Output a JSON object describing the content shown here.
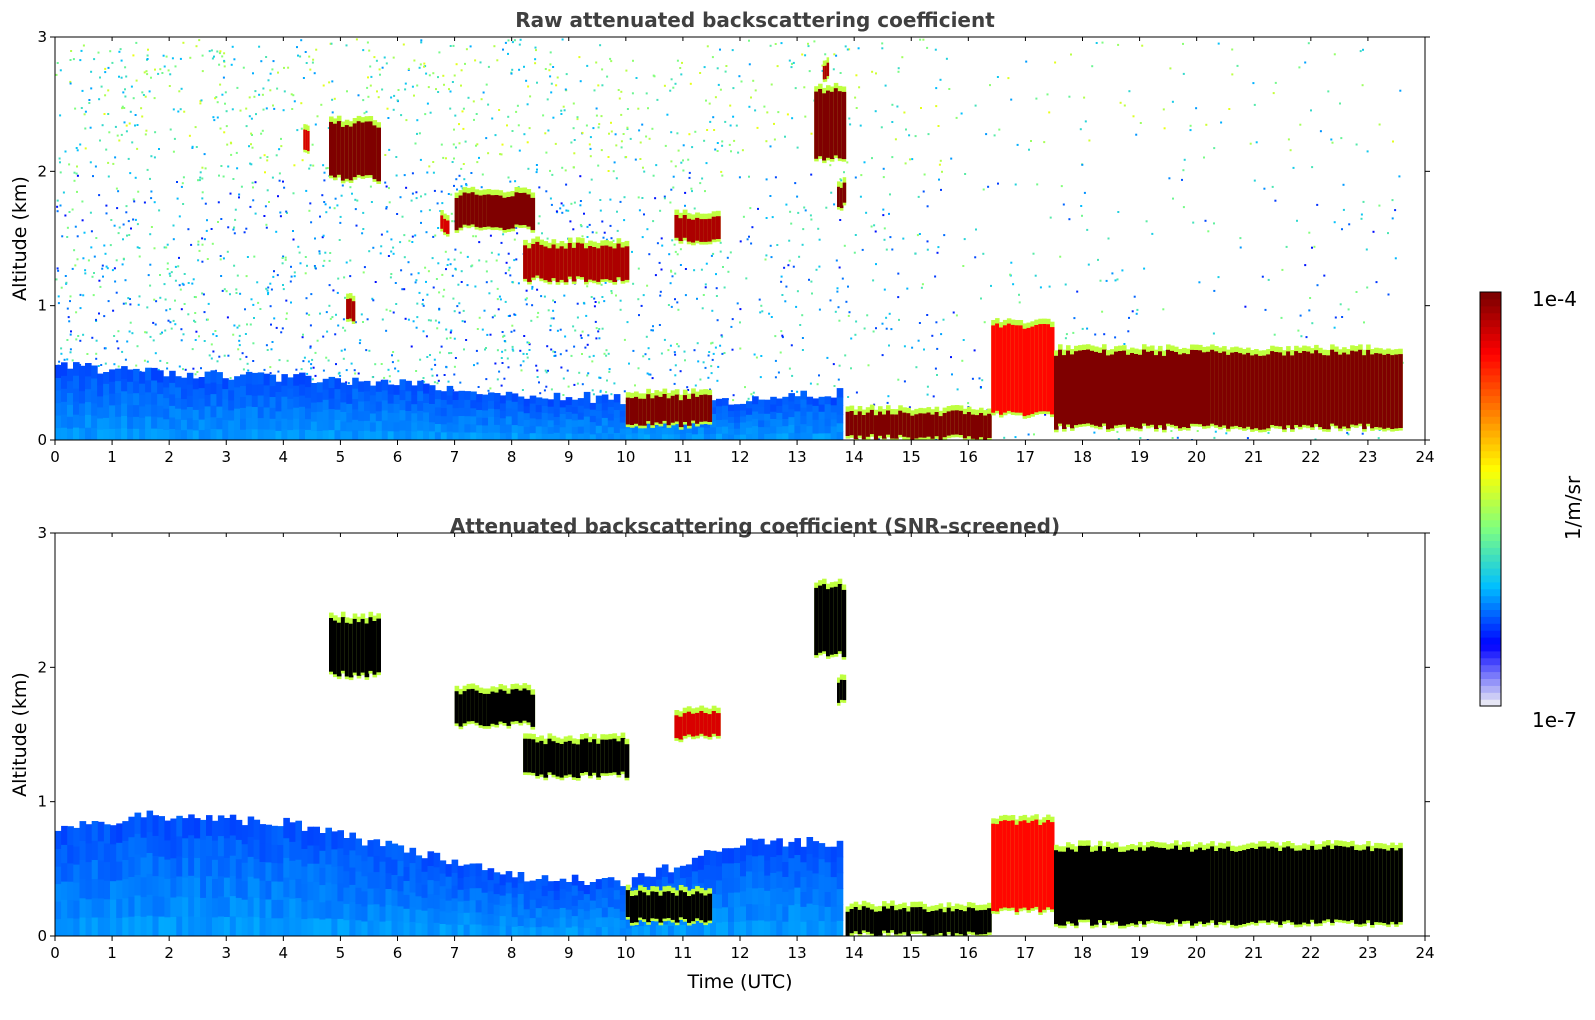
{
  "chart_data": [
    {
      "type": "heatmap",
      "title": "Raw attenuated backscattering coefficient",
      "xlabel": "",
      "ylabel": "Altitude (km)",
      "xlim": [
        0,
        24
      ],
      "ylim": [
        0,
        3
      ],
      "xticks": [
        "0",
        "1",
        "2",
        "3",
        "4",
        "5",
        "6",
        "7",
        "8",
        "9",
        "10",
        "11",
        "12",
        "13",
        "14",
        "15",
        "16",
        "17",
        "18",
        "19",
        "20",
        "21",
        "22",
        "23",
        "24"
      ],
      "yticks": [
        "0",
        "1",
        "2",
        "3"
      ],
      "noise": [
        {
          "t0": 0,
          "t1": 10.0,
          "top": 3.0,
          "density": 0.55
        },
        {
          "t0": 10.0,
          "t1": 13.8,
          "top": 3.0,
          "density": 0.35
        },
        {
          "t0": 13.8,
          "t1": 15.3,
          "top": 3.0,
          "density": 0.25
        },
        {
          "t0": 15.3,
          "t1": 23.6,
          "top": 3.0,
          "density": 0.12
        }
      ],
      "boundary_layer": [
        {
          "t": 0,
          "h": 0.55
        },
        {
          "t": 2,
          "h": 0.5
        },
        {
          "t": 5,
          "h": 0.45
        },
        {
          "t": 8,
          "h": 0.35
        },
        {
          "t": 10,
          "h": 0.3
        },
        {
          "t": 12,
          "h": 0.3
        },
        {
          "t": 13.8,
          "h": 0.35
        }
      ],
      "features": [
        {
          "t0": 4.8,
          "t1": 5.7,
          "b0": 1.95,
          "b1": 2.35,
          "level": 1.0
        },
        {
          "t0": 4.35,
          "t1": 4.45,
          "b0": 2.15,
          "b1": 2.3,
          "level": 0.9
        },
        {
          "t0": 7.0,
          "t1": 8.4,
          "b0": 1.58,
          "b1": 1.82,
          "level": 1.0
        },
        {
          "t0": 8.2,
          "t1": 10.05,
          "b0": 1.2,
          "b1": 1.45,
          "level": 0.95
        },
        {
          "t0": 6.75,
          "t1": 6.9,
          "b0": 1.55,
          "b1": 1.65,
          "level": 0.9
        },
        {
          "t0": 10.85,
          "t1": 11.65,
          "b0": 1.48,
          "b1": 1.65,
          "level": 0.95
        },
        {
          "t0": 13.3,
          "t1": 13.85,
          "b0": 2.1,
          "b1": 2.6,
          "level": 1.0
        },
        {
          "t0": 13.7,
          "t1": 13.85,
          "b0": 1.75,
          "b1": 1.9,
          "level": 1.0
        },
        {
          "t0": 13.45,
          "t1": 13.55,
          "b0": 2.7,
          "b1": 2.8,
          "level": 0.95
        },
        {
          "t0": 5.1,
          "t1": 5.25,
          "b0": 0.9,
          "b1": 1.05,
          "level": 0.95
        },
        {
          "t0": 10.0,
          "t1": 11.5,
          "b0": 0.12,
          "b1": 0.32,
          "level": 1.0
        },
        {
          "t0": 13.85,
          "t1": 16.4,
          "b0": 0.02,
          "b1": 0.2,
          "level": 1.0
        },
        {
          "t0": 16.4,
          "t1": 17.5,
          "b0": 0.2,
          "b1": 0.85,
          "level": 0.85
        },
        {
          "t0": 17.5,
          "t1": 23.6,
          "b0": 0.1,
          "b1": 0.65,
          "level": 1.0
        }
      ]
    },
    {
      "type": "heatmap",
      "title": "Attenuated backscattering coefficient (SNR-screened)",
      "xlabel": "Time (UTC)",
      "ylabel": "Altitude (km)",
      "xlim": [
        0,
        24
      ],
      "ylim": [
        0,
        3
      ],
      "xticks": [
        "0",
        "1",
        "2",
        "3",
        "4",
        "5",
        "6",
        "7",
        "8",
        "9",
        "10",
        "11",
        "12",
        "13",
        "14",
        "15",
        "16",
        "17",
        "18",
        "19",
        "20",
        "21",
        "22",
        "23",
        "24"
      ],
      "yticks": [
        "0",
        "1",
        "2",
        "3"
      ],
      "boundary_layer": [
        {
          "t": 0,
          "h": 0.8
        },
        {
          "t": 1.5,
          "h": 0.9
        },
        {
          "t": 4,
          "h": 0.85
        },
        {
          "t": 6,
          "h": 0.65
        },
        {
          "t": 8,
          "h": 0.45
        },
        {
          "t": 10,
          "h": 0.4
        },
        {
          "t": 12,
          "h": 0.7
        },
        {
          "t": 13.8,
          "h": 0.7
        }
      ],
      "features": [
        {
          "t0": 4.8,
          "t1": 5.7,
          "b0": 1.95,
          "b1": 2.35,
          "level": 1.1
        },
        {
          "t0": 7.0,
          "t1": 8.4,
          "b0": 1.58,
          "b1": 1.82,
          "level": 1.1
        },
        {
          "t0": 8.2,
          "t1": 10.05,
          "b0": 1.2,
          "b1": 1.45,
          "level": 1.1
        },
        {
          "t0": 10.85,
          "t1": 11.65,
          "b0": 1.48,
          "b1": 1.65,
          "level": 0.9
        },
        {
          "t0": 13.3,
          "t1": 13.85,
          "b0": 2.1,
          "b1": 2.6,
          "level": 1.1
        },
        {
          "t0": 13.7,
          "t1": 13.85,
          "b0": 1.75,
          "b1": 1.9,
          "level": 1.1
        },
        {
          "t0": 10.0,
          "t1": 11.5,
          "b0": 0.12,
          "b1": 0.32,
          "level": 1.1
        },
        {
          "t0": 13.85,
          "t1": 16.4,
          "b0": 0.02,
          "b1": 0.2,
          "level": 1.1
        },
        {
          "t0": 16.4,
          "t1": 17.5,
          "b0": 0.2,
          "b1": 0.85,
          "level": 0.85
        },
        {
          "t0": 17.5,
          "t1": 23.6,
          "b0": 0.1,
          "b1": 0.65,
          "level": 1.1
        }
      ]
    }
  ],
  "colorbar": {
    "label": "1/m/sr",
    "max_label": "1e-4",
    "min_label": "1e-7",
    "colormap": "jet",
    "colors": [
      "#e6e6f5",
      "#0000ff",
      "#00bfff",
      "#7fff7f",
      "#ffff00",
      "#ff7f00",
      "#ff0000",
      "#7f0000"
    ]
  }
}
